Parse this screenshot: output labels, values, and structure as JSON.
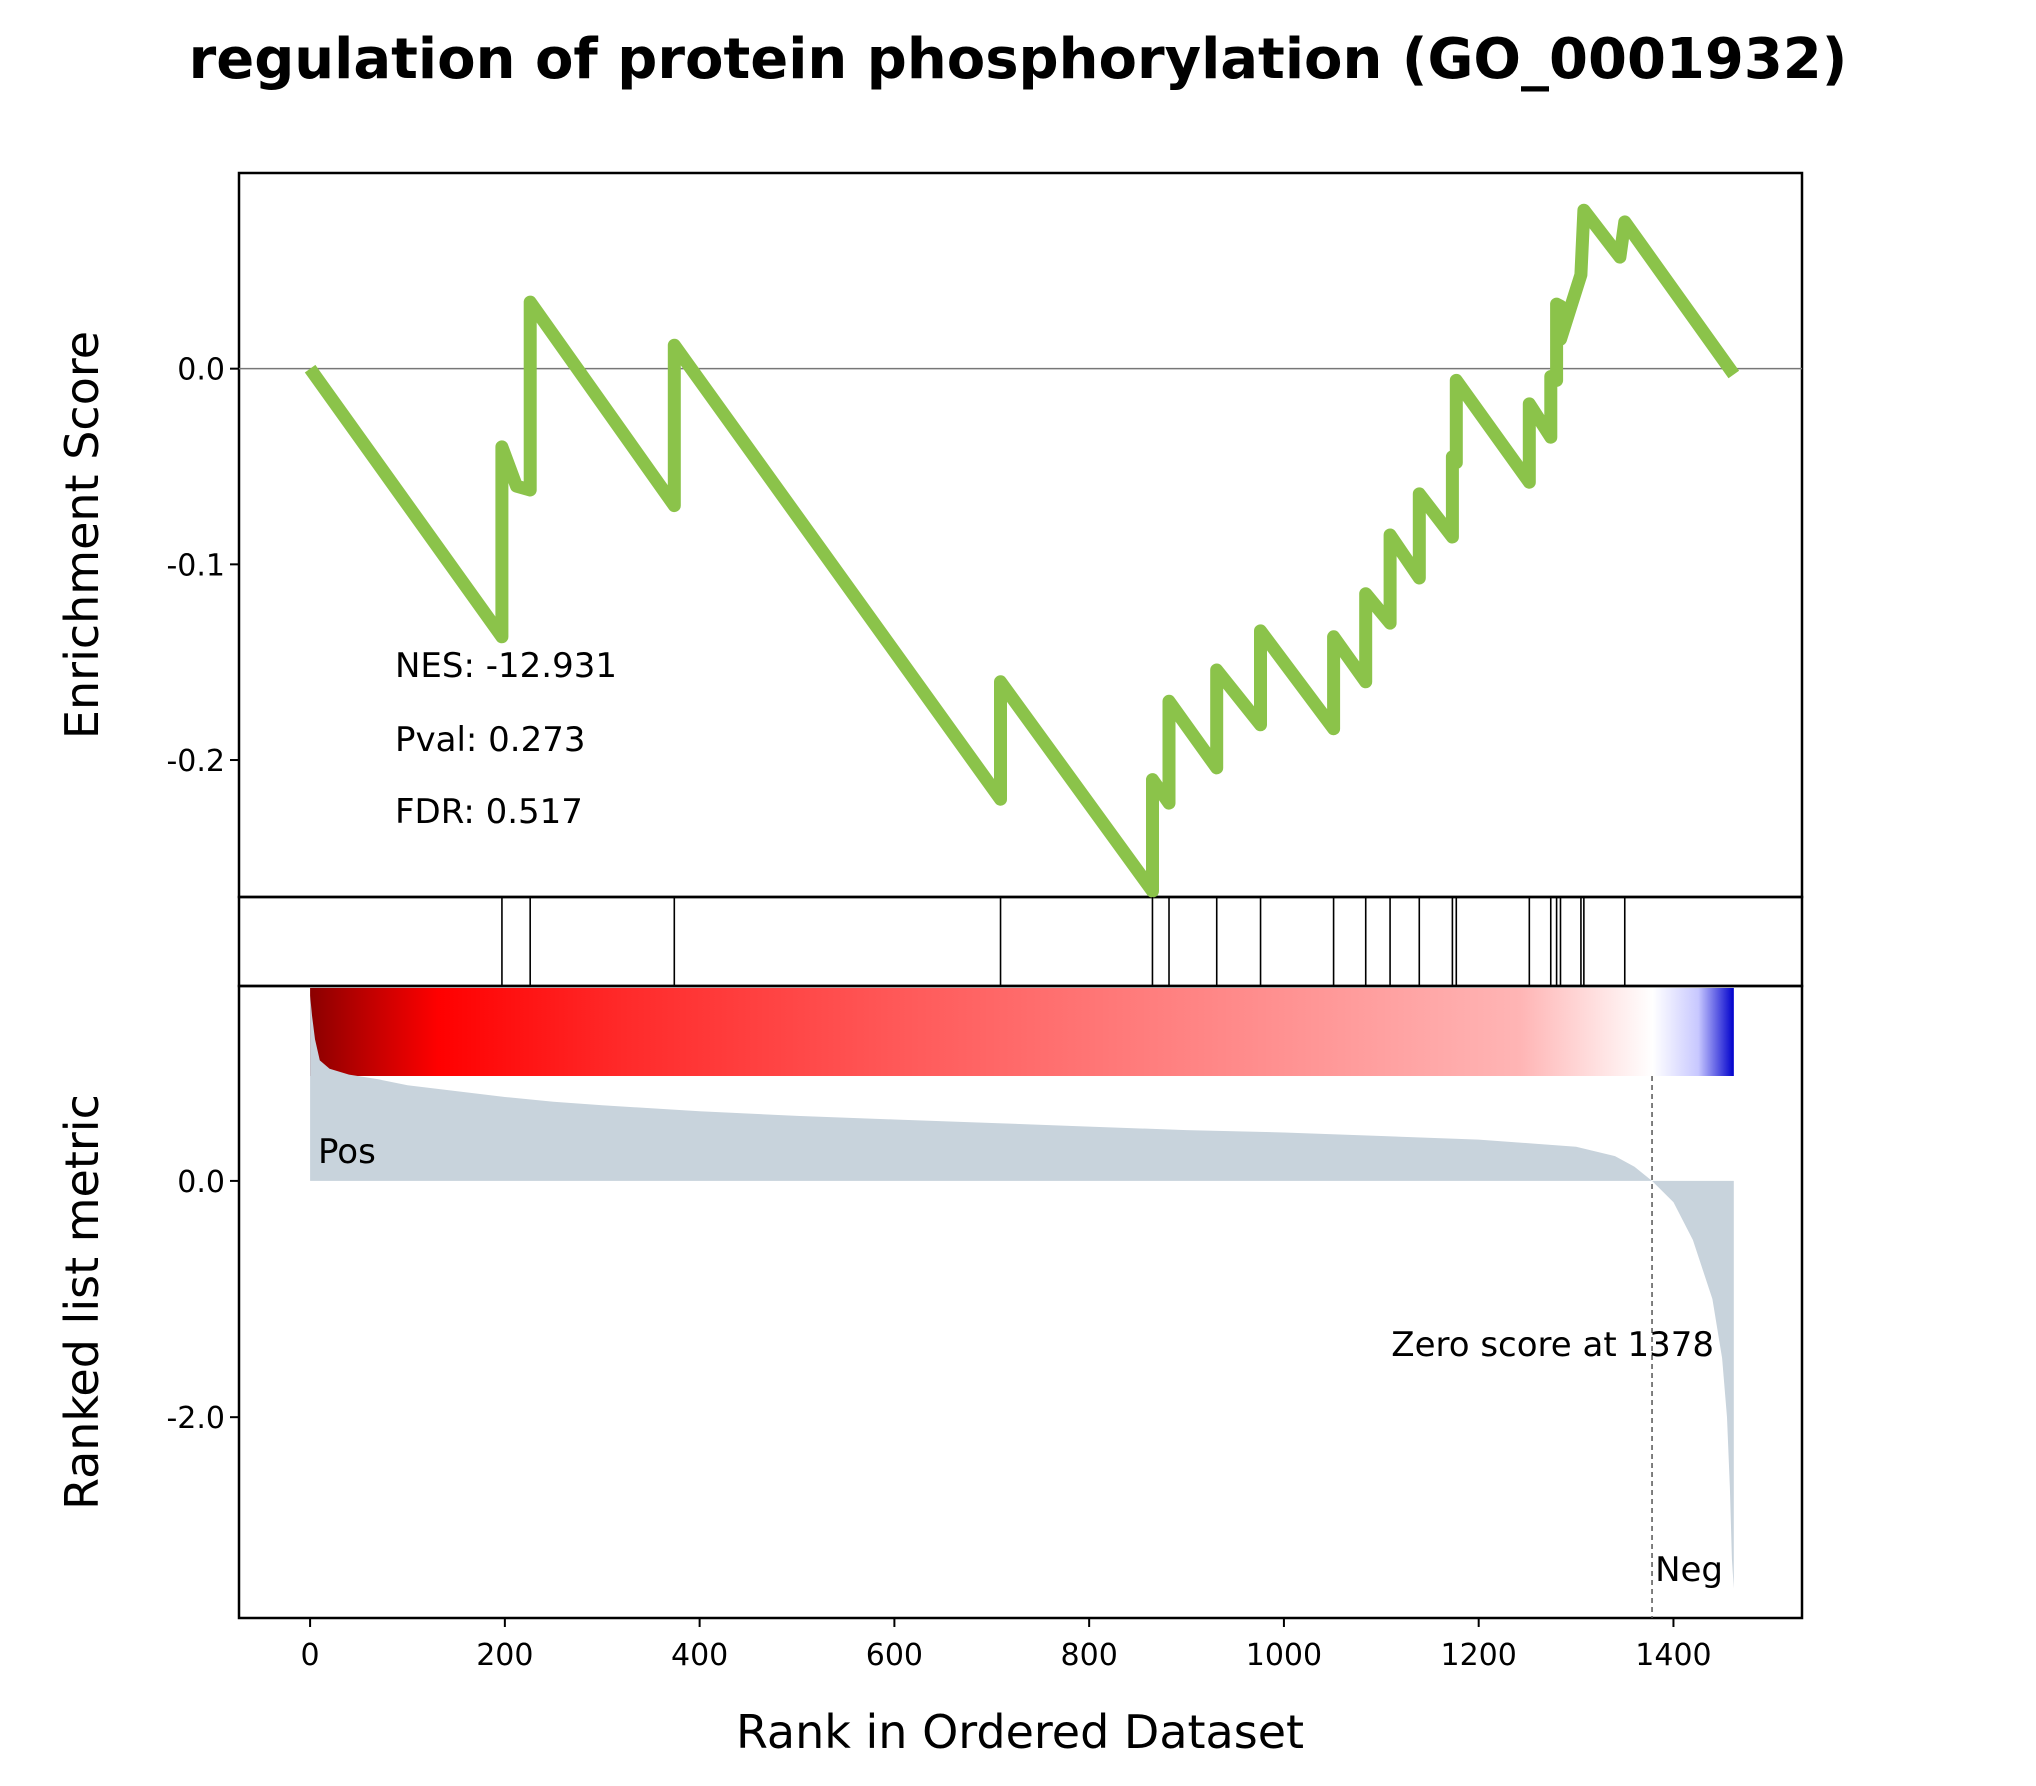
{
  "chart_data": {
    "type": "line",
    "title": "regulation of protein phosphorylation (GO_0001932)",
    "xlabel": "Rank in Ordered Dataset",
    "panels": {
      "enrichment": {
        "ylabel": "Enrichment Score",
        "ylim": [
          -0.27,
          0.1
        ],
        "yticks": [
          {
            "value": 0.0,
            "label": "0.0"
          },
          {
            "value": -0.1,
            "label": "-0.1"
          },
          {
            "value": -0.2,
            "label": "-0.2"
          }
        ],
        "zero_line": true,
        "line_color": "#8bc34a",
        "series": [
          {
            "x": [
              0,
              197,
              197,
              212,
              212,
              226,
              226,
              374,
              374,
              709,
              709,
              865,
              865,
              882,
              882,
              931,
              931,
              976,
              976,
              1051,
              1051,
              1084,
              1084,
              1109,
              1109,
              1139,
              1139,
              1173,
              1173,
              1177,
              1177,
              1252,
              1252,
              1274,
              1274,
              1280,
              1280,
              1284,
              1284,
              1305,
              1305,
              1308,
              1308,
              1345,
              1345,
              1350,
              1350,
              1462
            ],
            "y": [
              0.0,
              -0.137,
              -0.04,
              -0.06,
              -0.06,
              -0.062,
              0.034,
              -0.07,
              0.012,
              -0.22,
              -0.16,
              -0.267,
              -0.21,
              -0.222,
              -0.17,
              -0.204,
              -0.154,
              -0.182,
              -0.134,
              -0.184,
              -0.137,
              -0.16,
              -0.115,
              -0.13,
              -0.085,
              -0.107,
              -0.064,
              -0.086,
              -0.045,
              -0.048,
              -0.006,
              -0.058,
              -0.018,
              -0.035,
              -0.004,
              -0.006,
              0.033,
              0.032,
              0.015,
              0.048,
              0.048,
              0.081,
              0.081,
              0.057,
              0.057,
              0.075,
              0.075,
              -0.003
            ]
          }
        ]
      },
      "hits": {
        "ranks": [
          197,
          226,
          374,
          709,
          865,
          882,
          931,
          976,
          1051,
          1084,
          1109,
          1139,
          1173,
          1177,
          1252,
          1274,
          1280,
          1284,
          1305,
          1308,
          1350
        ]
      },
      "heatmap": {
        "colormap": "seismic (dark red high → white at zero → blue low)",
        "x_range": [
          0,
          1462
        ]
      },
      "ranked_metric": {
        "ylabel": "Ranked list metric",
        "ylim": [
          -3.7,
          1.65
        ],
        "yticks": [
          {
            "value": 0.0,
            "label": "0.0"
          },
          {
            "value": -2.0,
            "label": "-2.0"
          }
        ],
        "fill_color": "#c8d3dc",
        "x": [
          0,
          2,
          5,
          10,
          20,
          40,
          70,
          100,
          150,
          200,
          250,
          300,
          400,
          500,
          600,
          700,
          800,
          900,
          1000,
          1100,
          1200,
          1300,
          1340,
          1360,
          1378,
          1400,
          1420,
          1440,
          1450,
          1455,
          1458,
          1460,
          1462
        ],
        "y": [
          1.57,
          1.4,
          1.2,
          1.02,
          0.95,
          0.9,
          0.86,
          0.81,
          0.76,
          0.71,
          0.67,
          0.64,
          0.59,
          0.55,
          0.52,
          0.49,
          0.46,
          0.43,
          0.41,
          0.38,
          0.35,
          0.29,
          0.21,
          0.12,
          0.0,
          -0.18,
          -0.5,
          -1.0,
          -1.5,
          -2.0,
          -2.6,
          -3.2,
          -3.45
        ],
        "zero_score_rank": 1378,
        "annotations": {
          "pos": "Pos",
          "neg": "Neg",
          "zero": "Zero score at 1378"
        },
        "pos_color": "#ff0000",
        "neg_color": "#0000ff"
      }
    },
    "xlim": [
      -73,
      1532
    ],
    "xticks": [
      0,
      200,
      400,
      600,
      800,
      1000,
      1200,
      1400
    ],
    "stats": {
      "nes": "NES: -12.931",
      "pval": "Pval: 0.273",
      "fdr": "FDR: 0.517"
    }
  }
}
